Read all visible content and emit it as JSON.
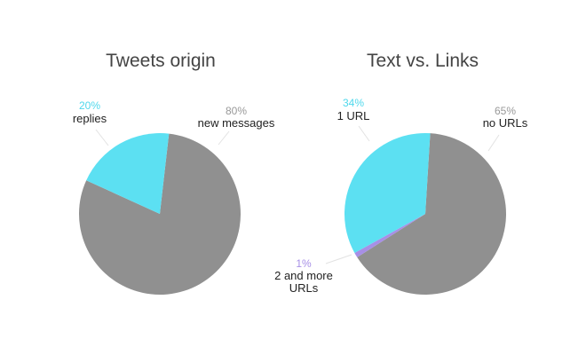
{
  "chart_data": [
    {
      "type": "pie",
      "title": "Tweets origin",
      "slices": [
        {
          "label": "new messages",
          "value": 80,
          "display": "80%",
          "color": "#909090",
          "pct_color": "#999999"
        },
        {
          "label": "replies",
          "value": 20,
          "display": "20%",
          "color": "#5CE0F2",
          "pct_color": "#4FD8EC"
        }
      ]
    },
    {
      "type": "pie",
      "title": "Text vs. Links",
      "slices": [
        {
          "label": "no URLs",
          "value": 65,
          "display": "65%",
          "color": "#909090",
          "pct_color": "#999999"
        },
        {
          "label": "2 and more URLs",
          "value": 1,
          "display": "1%",
          "color": "#A78FE6",
          "pct_color": "#A78FE6"
        },
        {
          "label": "1 URL",
          "value": 34,
          "display": "34%",
          "color": "#5CE0F2",
          "pct_color": "#4FD8EC"
        }
      ]
    }
  ]
}
